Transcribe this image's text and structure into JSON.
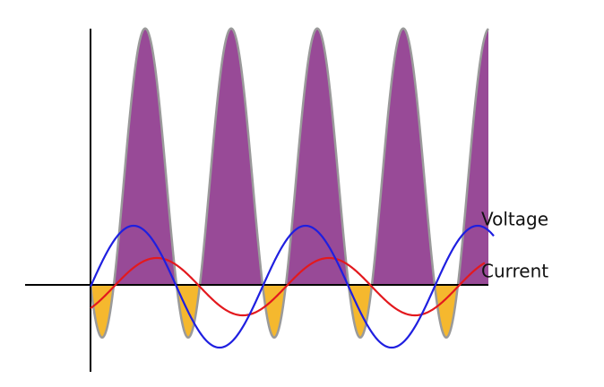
{
  "labels": {
    "voltage": "Voltage",
    "current": "Current"
  }
}
